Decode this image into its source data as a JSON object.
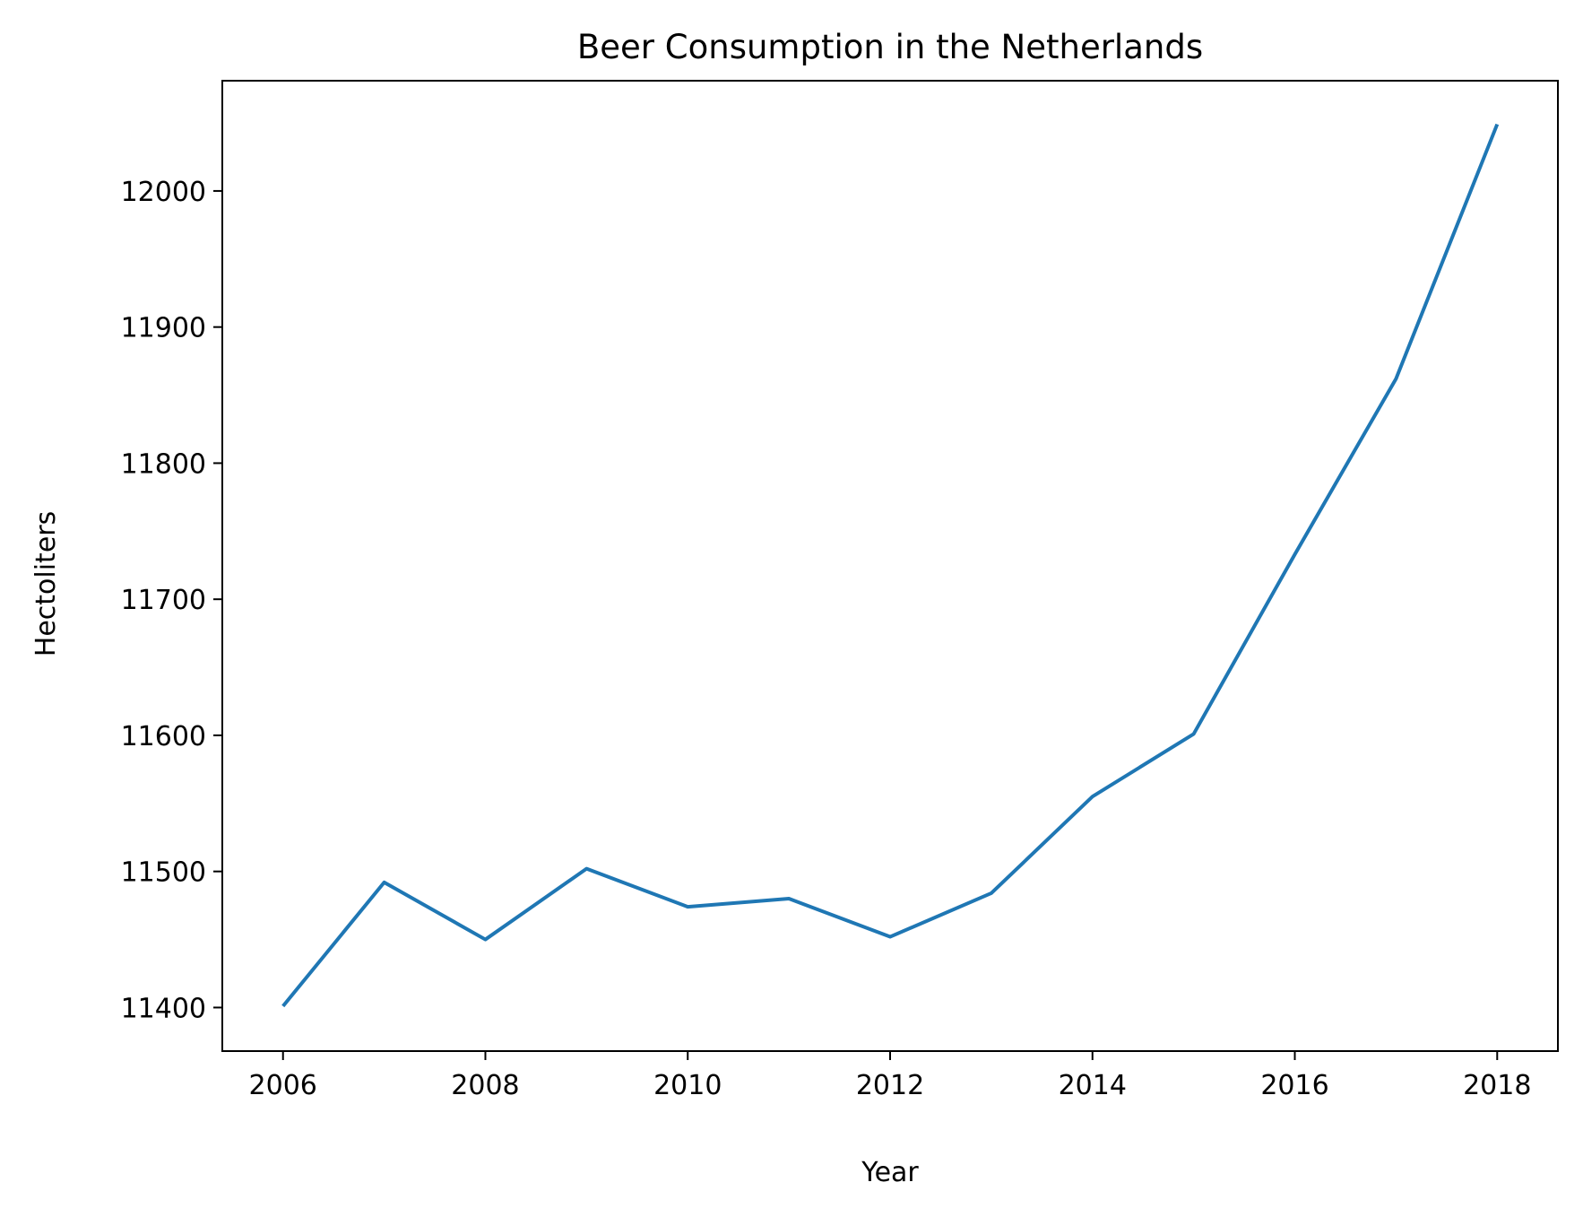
{
  "chart_data": {
    "type": "line",
    "title": "Beer Consumption in the Netherlands",
    "xlabel": "Year",
    "ylabel": "Hectoliters",
    "x": [
      2006,
      2007,
      2008,
      2009,
      2010,
      2011,
      2012,
      2013,
      2014,
      2015,
      2016,
      2017,
      2018
    ],
    "series": [
      {
        "values": [
          11401,
          11492,
          11450,
          11502,
          11474,
          11480,
          11452,
          11484,
          11555,
          11601,
          11733,
          11862,
          12049
        ],
        "color": "#1f77b4"
      }
    ],
    "xlim": [
      2005.4,
      2018.6
    ],
    "ylim": [
      11368,
      12081
    ],
    "xticks": [
      "2006",
      "2008",
      "2010",
      "2012",
      "2014",
      "2016",
      "2018"
    ],
    "yticks": [
      "11400",
      "11500",
      "11600",
      "11700",
      "11800",
      "11900",
      "12000"
    ],
    "grid": false,
    "legend": "none"
  }
}
